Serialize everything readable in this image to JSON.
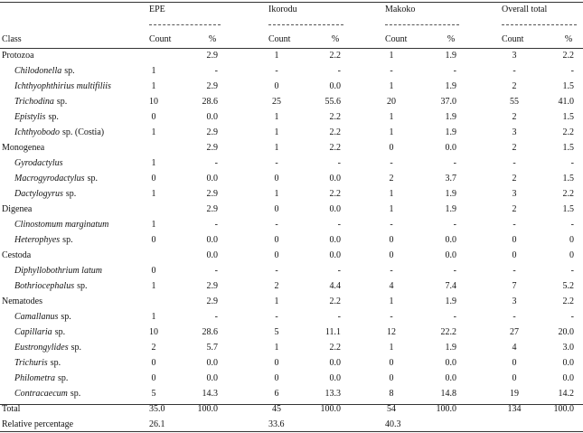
{
  "table": {
    "groups": [
      "EPE",
      "Ikorodu",
      "Makoko",
      "Overall total"
    ],
    "class_header": "Class",
    "subheaders": [
      "Count",
      "%",
      "Count",
      "%",
      "Count",
      "%",
      "Count",
      "%"
    ],
    "rows": [
      {
        "label": "Protozoa",
        "cells": [
          null,
          "2.9",
          "1",
          "2.2",
          "1",
          "1.9",
          "3",
          "2.2"
        ]
      },
      {
        "taxon": "Chilodonella",
        "note": "sp.",
        "cells": [
          "1",
          "-",
          "-",
          "-",
          "-",
          "-",
          "-",
          "-"
        ]
      },
      {
        "taxon": "Ichthyophthirius multifiliis",
        "cells": [
          "1",
          "2.9",
          "0",
          "0.0",
          "1",
          "1.9",
          "2",
          "1.5"
        ]
      },
      {
        "taxon": "Trichodina",
        "note": "sp.",
        "cells": [
          "10",
          "28.6",
          "25",
          "55.6",
          "20",
          "37.0",
          "55",
          "41.0"
        ]
      },
      {
        "taxon": "Epistylis",
        "note": "sp.",
        "cells": [
          "0",
          "0.0",
          "1",
          "2.2",
          "1",
          "1.9",
          "2",
          "1.5"
        ]
      },
      {
        "taxon": "Ichthyobodo",
        "note": "sp. (Costia)",
        "cells": [
          "1",
          "2.9",
          "1",
          "2.2",
          "1",
          "1.9",
          "3",
          "2.2"
        ]
      },
      {
        "label": "Monogenea",
        "cells": [
          null,
          "2.9",
          "1",
          "2.2",
          "0",
          "0.0",
          "2",
          "1.5"
        ]
      },
      {
        "taxon": "Gyrodactylus",
        "cells": [
          "1",
          "-",
          "-",
          "-",
          "-",
          "-",
          "-",
          "-"
        ]
      },
      {
        "taxon": "Macrogyrodactylus",
        "note": "sp.",
        "cells": [
          "0",
          "0.0",
          "0",
          "0.0",
          "2",
          "3.7",
          "2",
          "1.5"
        ]
      },
      {
        "taxon": "Dactylogyrus",
        "note": "sp.",
        "cells": [
          "1",
          "2.9",
          "1",
          "2.2",
          "1",
          "1.9",
          "3",
          "2.2"
        ]
      },
      {
        "label": "Digenea",
        "cells": [
          null,
          "2.9",
          "0",
          "0.0",
          "1",
          "1.9",
          "2",
          "1.5"
        ]
      },
      {
        "taxon": "Clinostomum marginatum",
        "cells": [
          "1",
          "-",
          "-",
          "-",
          "-",
          "-",
          "-",
          "-"
        ]
      },
      {
        "taxon": "Heterophyes",
        "note": "sp.",
        "cells": [
          "0",
          "0.0",
          "0",
          "0.0",
          "0",
          "0.0",
          "0",
          "0"
        ]
      },
      {
        "label": "Cestoda",
        "cells": [
          null,
          "0.0",
          "0",
          "0.0",
          "0",
          "0.0",
          "0",
          "0"
        ]
      },
      {
        "taxon": "Diphyllobothrium latum",
        "cells": [
          "0",
          "-",
          "-",
          "-",
          "-",
          "-",
          "-",
          "-"
        ]
      },
      {
        "taxon": "Bothriocephalus",
        "note": "sp.",
        "cells": [
          "1",
          "2.9",
          "2",
          "4.4",
          "4",
          "7.4",
          "7",
          "5.2"
        ]
      },
      {
        "label": "Nematodes",
        "cells": [
          null,
          "2.9",
          "1",
          "2.2",
          "1",
          "1.9",
          "3",
          "2.2"
        ]
      },
      {
        "taxon": "Camallanus",
        "note": "sp.",
        "cells": [
          "1",
          "-",
          "-",
          "-",
          "-",
          "-",
          "-",
          "-"
        ]
      },
      {
        "taxon": "Capillaria",
        "note": "sp.",
        "cells": [
          "10",
          "28.6",
          "5",
          "11.1",
          "12",
          "22.2",
          "27",
          "20.0"
        ]
      },
      {
        "taxon": "Eustrongylides",
        "note": "sp.",
        "cells": [
          "2",
          "5.7",
          "1",
          "2.2",
          "1",
          "1.9",
          "4",
          "3.0"
        ]
      },
      {
        "taxon": "Trichuris",
        "note": "sp.",
        "cells": [
          "0",
          "0.0",
          "0",
          "0.0",
          "0",
          "0.0",
          "0",
          "0.0"
        ]
      },
      {
        "taxon": "Philometra",
        "note": "sp.",
        "cells": [
          "0",
          "0.0",
          "0",
          "0.0",
          "0",
          "0.0",
          "0",
          "0.0"
        ]
      },
      {
        "taxon": "Contracaecum",
        "note": "sp.",
        "cells": [
          "5",
          "14.3",
          "6",
          "13.3",
          "8",
          "14.8",
          "19",
          "14.2"
        ]
      },
      {
        "label": "Total",
        "cells": [
          "35.0",
          "100.0",
          "45",
          "100.0",
          "54",
          "100.0",
          "134",
          "100.0"
        ]
      },
      {
        "label": "Relative percentage",
        "cells": [
          "26.1",
          null,
          "33.6",
          null,
          "40.3",
          null,
          null,
          null
        ]
      }
    ]
  }
}
